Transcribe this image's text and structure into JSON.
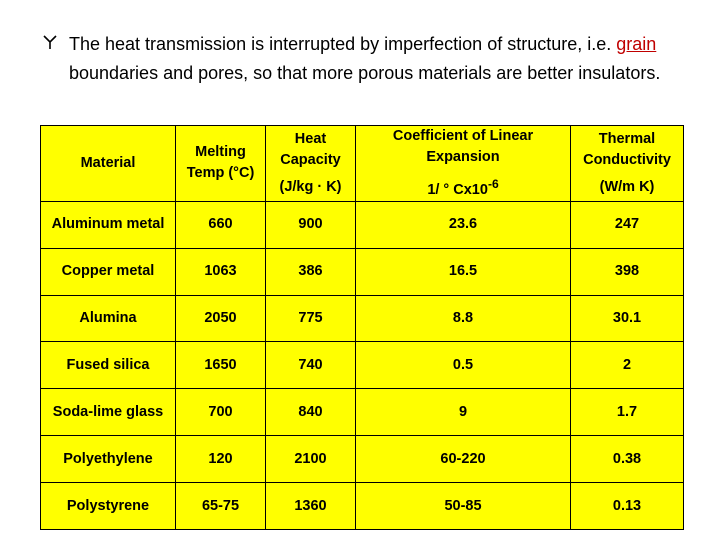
{
  "bullet": {
    "before": "The heat transmission is interrupted by imperfection of structure, i.e. ",
    "underlined": "grain ",
    "after": "boundaries and pores, so that more porous materials are better insulators."
  },
  "table": {
    "header": [
      {
        "title": "Material"
      },
      {
        "title": "Melting Temp (°C)"
      },
      {
        "title": "Heat Capacity",
        "unit": "(J/kg · K)"
      },
      {
        "title": "Coefficient of Linear Expansion",
        "unit": "1/ ° Cx10",
        "unit_sup": "-6"
      },
      {
        "title": "Thermal Conductivity",
        "unit": "(W/m K)"
      }
    ],
    "rows": [
      [
        "Aluminum metal",
        "660",
        "900",
        "23.6",
        "247"
      ],
      [
        "Copper metal",
        "1063",
        "386",
        "16.5",
        "398"
      ],
      [
        "Alumina",
        "2050",
        "775",
        "8.8",
        "30.1"
      ],
      [
        "Fused silica",
        "1650",
        "740",
        "0.5",
        "2"
      ],
      [
        "Soda-lime glass",
        "700",
        "840",
        "9",
        "1.7"
      ],
      [
        "Polyethylene",
        "120",
        "2100",
        "60-220",
        "0.38"
      ],
      [
        "Polystyrene",
        "65-75",
        "1360",
        "50-85",
        "0.13"
      ]
    ]
  }
}
